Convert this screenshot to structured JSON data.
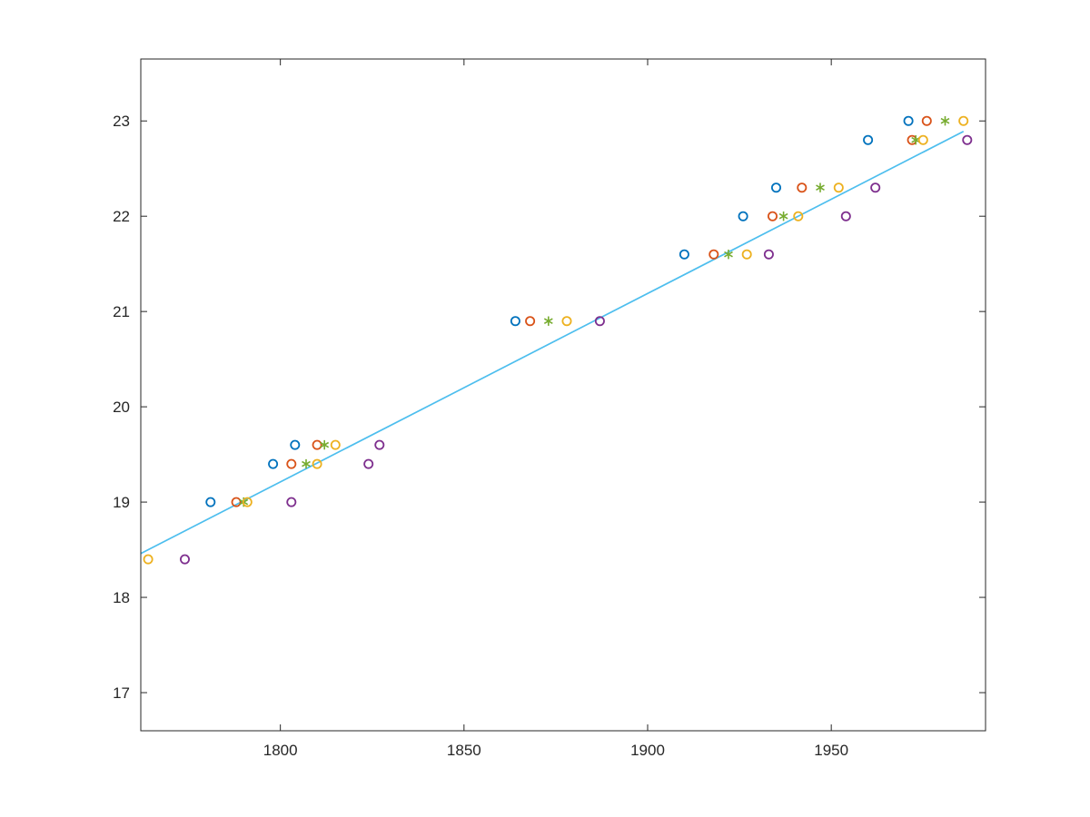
{
  "figure": {
    "background": "#ffffff"
  },
  "chart_data": {
    "type": "scatter",
    "title": "",
    "xlabel": "",
    "ylabel": "",
    "grid": false,
    "legend": null,
    "axis_color": "#262626",
    "xlim": [
      1762,
      1992
    ],
    "ylim": [
      16.6,
      23.65
    ],
    "xticks": [
      "1800",
      "1850",
      "1900",
      "1950"
    ],
    "yticks": [
      "17",
      "18",
      "19",
      "20",
      "21",
      "22",
      "23"
    ],
    "series": [
      {
        "name": "series-blue-circles",
        "marker": "circle",
        "color": "#0072BD",
        "points": [
          [
            1781,
            19.0
          ],
          [
            1798,
            19.4
          ],
          [
            1804,
            19.6
          ],
          [
            1864,
            20.9
          ],
          [
            1910,
            21.6
          ],
          [
            1926,
            22.0
          ],
          [
            1935,
            22.3
          ],
          [
            1960,
            22.8
          ],
          [
            1971,
            23.0
          ]
        ]
      },
      {
        "name": "series-orange-circles",
        "marker": "circle",
        "color": "#D95319",
        "points": [
          [
            1788,
            19.0
          ],
          [
            1803,
            19.4
          ],
          [
            1810,
            19.6
          ],
          [
            1868,
            20.9
          ],
          [
            1918,
            21.6
          ],
          [
            1934,
            22.0
          ],
          [
            1942,
            22.3
          ],
          [
            1972,
            22.8
          ],
          [
            1976,
            23.0
          ]
        ]
      },
      {
        "name": "series-green-asterisks",
        "marker": "asterisk",
        "color": "#77AC30",
        "points": [
          [
            1790,
            19.0
          ],
          [
            1807,
            19.4
          ],
          [
            1812,
            19.6
          ],
          [
            1873,
            20.9
          ],
          [
            1922,
            21.6
          ],
          [
            1937,
            22.0
          ],
          [
            1947,
            22.3
          ],
          [
            1973,
            22.8
          ],
          [
            1981,
            23.0
          ]
        ]
      },
      {
        "name": "series-yellow-circles",
        "marker": "circle",
        "color": "#EDB120",
        "points": [
          [
            1764,
            18.4
          ],
          [
            1791,
            19.0
          ],
          [
            1810,
            19.4
          ],
          [
            1815,
            19.6
          ],
          [
            1878,
            20.9
          ],
          [
            1927,
            21.6
          ],
          [
            1941,
            22.0
          ],
          [
            1952,
            22.3
          ],
          [
            1975,
            22.8
          ],
          [
            1986,
            23.0
          ]
        ]
      },
      {
        "name": "series-purple-circles",
        "marker": "circle",
        "color": "#7E2F8E",
        "points": [
          [
            1774,
            18.4
          ],
          [
            1803,
            19.0
          ],
          [
            1824,
            19.4
          ],
          [
            1827,
            19.6
          ],
          [
            1887,
            20.9
          ],
          [
            1933,
            21.6
          ],
          [
            1954,
            22.0
          ],
          [
            1962,
            22.3
          ],
          [
            1987,
            22.8
          ]
        ]
      }
    ],
    "fit_line": {
      "name": "linear-fit-line",
      "color": "#4DBEEE",
      "points": [
        [
          1762,
          18.46
        ],
        [
          1986,
          22.89
        ]
      ]
    }
  }
}
